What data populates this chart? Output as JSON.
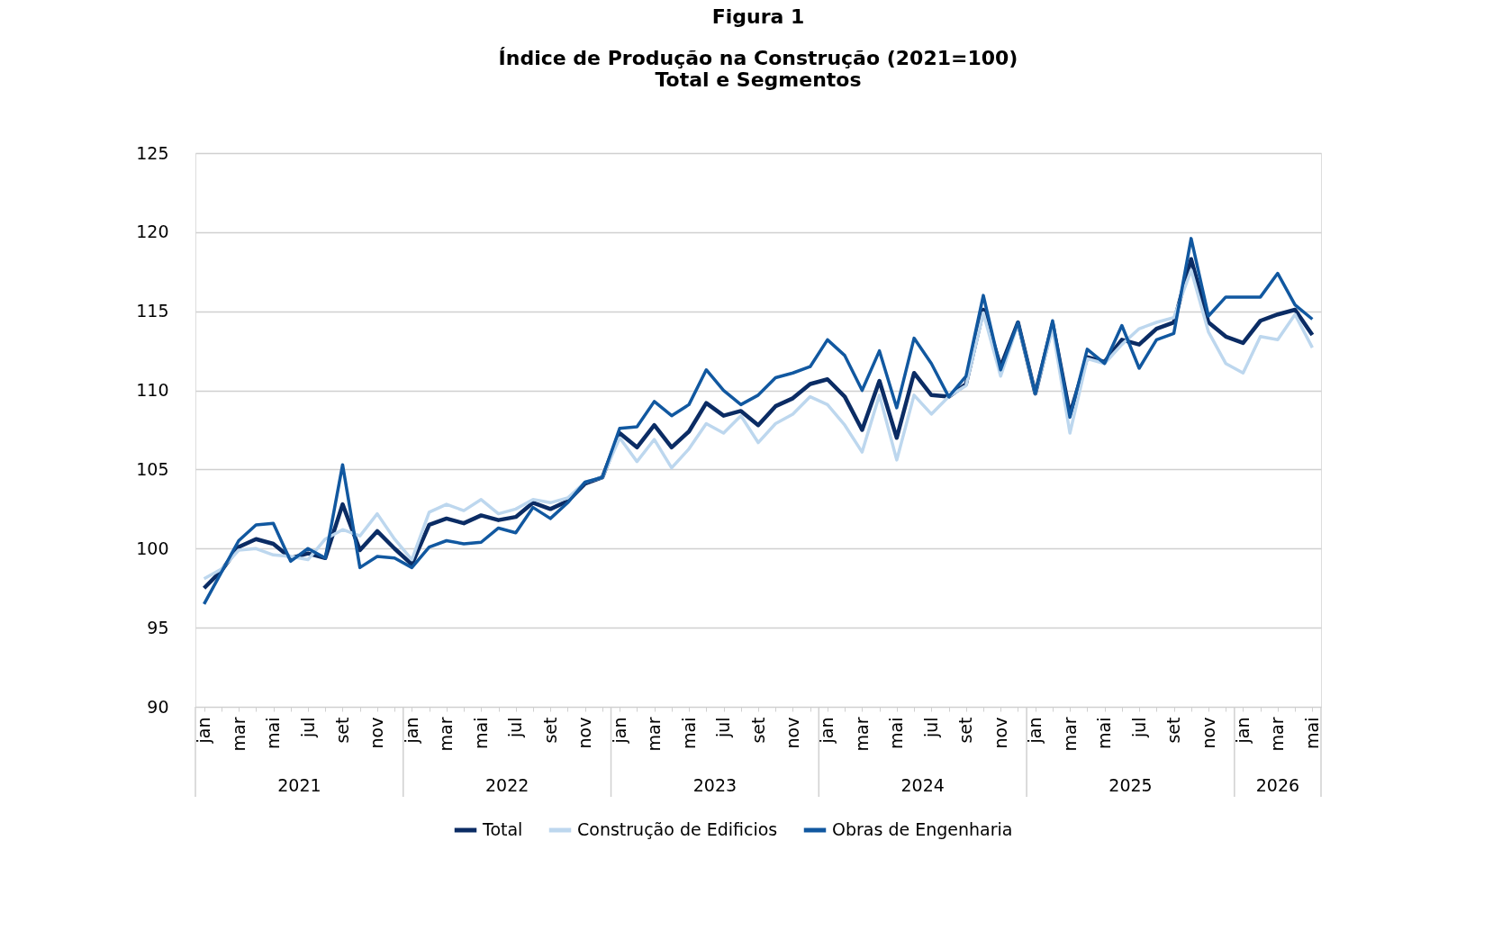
{
  "chart_data": {
    "type": "line",
    "title": "Figura 1",
    "subtitle": "Índice de Produção na Construção (2021=100)\nTotal e Segmentos",
    "categories": [
      "jan",
      null,
      "mar",
      null,
      "mai",
      null,
      "jul",
      null,
      "set",
      null,
      "nov",
      null,
      "jan",
      null,
      "mar",
      null,
      "mai",
      null,
      "jul",
      null,
      "set",
      null,
      "nov",
      null,
      "jan",
      null,
      "mar",
      null,
      "mai",
      null,
      "jul",
      null,
      "set",
      null,
      "nov",
      null,
      "jan",
      null,
      "mar",
      null,
      "mai",
      null,
      "jul",
      null,
      "set",
      null,
      "nov",
      null,
      "jan",
      null,
      "mar",
      null,
      "mai",
      null,
      "jul",
      null,
      "set",
      null,
      "nov",
      null,
      "jan",
      null,
      "mar",
      null,
      "mai"
    ],
    "annotations": [
      "2021",
      "2022",
      "2023",
      "2024",
      "2025",
      "2026"
    ],
    "series": [
      {
        "name": "Total",
        "color": "#0b2c64",
        "values": [
          97.5,
          98.6,
          100.1,
          100.6,
          100.3,
          99.4,
          99.7,
          99.4,
          102.8,
          99.9,
          101.1,
          100.0,
          99.0,
          101.5,
          101.9,
          101.6,
          102.1,
          101.8,
          102.0,
          102.9,
          102.5,
          103.0,
          104.1,
          104.5,
          107.3,
          106.4,
          107.8,
          106.4,
          107.4,
          109.2,
          108.4,
          108.7,
          107.8,
          109.0,
          109.5,
          110.4,
          110.7,
          109.6,
          107.5,
          110.6,
          107.0,
          111.1,
          109.7,
          109.6,
          110.4,
          115.1,
          111.5,
          114.3,
          109.8,
          114.2,
          108.5,
          112.1,
          111.8,
          113.2,
          112.9,
          113.9,
          114.3,
          118.3,
          114.3,
          113.4,
          113.0,
          114.4,
          114.8,
          115.1,
          113.5
        ]
      },
      {
        "name": "Construção de Edificios",
        "color": "#bdd7ee",
        "values": [
          98.1,
          98.7,
          99.9,
          100.0,
          99.6,
          99.5,
          99.3,
          100.6,
          101.2,
          100.8,
          102.2,
          100.6,
          99.3,
          102.3,
          102.8,
          102.4,
          103.1,
          102.2,
          102.5,
          103.1,
          102.9,
          103.2,
          104.2,
          104.5,
          107.0,
          105.5,
          106.9,
          105.1,
          106.3,
          107.9,
          107.3,
          108.4,
          106.7,
          107.9,
          108.5,
          109.6,
          109.1,
          107.8,
          106.1,
          109.7,
          105.6,
          109.7,
          108.5,
          109.6,
          110.3,
          114.9,
          110.9,
          114.2,
          109.8,
          113.9,
          107.3,
          112.0,
          111.7,
          112.9,
          113.9,
          114.3,
          114.6,
          117.6,
          113.7,
          111.7,
          111.1,
          113.4,
          113.2,
          114.8,
          112.7
        ]
      },
      {
        "name": "Obras de Engenharia",
        "color": "#1158a0",
        "values": [
          96.5,
          98.5,
          100.5,
          101.5,
          101.6,
          99.2,
          100.0,
          99.4,
          105.3,
          98.8,
          99.5,
          99.4,
          98.8,
          100.1,
          100.5,
          100.3,
          100.4,
          101.3,
          101.0,
          102.6,
          101.9,
          102.9,
          104.2,
          104.5,
          107.6,
          107.7,
          109.3,
          108.4,
          109.1,
          111.3,
          110.0,
          109.1,
          109.7,
          110.8,
          111.1,
          111.5,
          113.2,
          112.2,
          110.0,
          112.5,
          108.9,
          113.3,
          111.7,
          109.6,
          110.9,
          116.0,
          111.3,
          114.3,
          109.8,
          114.4,
          108.3,
          112.6,
          111.7,
          114.1,
          111.4,
          113.2,
          113.6,
          119.6,
          114.7,
          115.9,
          115.9,
          115.9,
          117.4,
          115.4,
          114.5
        ]
      }
    ],
    "ylim": [
      90,
      125
    ],
    "yticks": [
      90,
      95,
      100,
      105,
      110,
      115,
      120,
      125
    ],
    "grid": "y",
    "legend": "bottom",
    "marker": "none",
    "line_style": "solid"
  }
}
